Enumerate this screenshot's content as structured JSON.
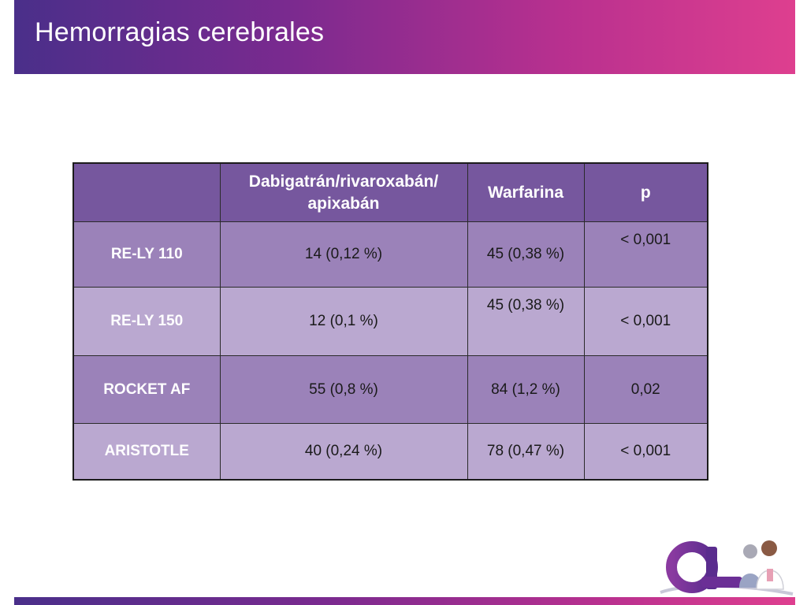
{
  "slide": {
    "title": "Hemorragias cerebrales"
  },
  "table": {
    "headers": [
      "",
      "Dabigatrán/rivaroxabán/ apixabán",
      "Warfarina",
      "p"
    ],
    "rows": [
      {
        "label": "RE-LY 110",
        "cells": [
          "14 (0,12 %)",
          "45 (0,38 %)",
          "< 0,001"
        ]
      },
      {
        "label": "RE-LY 150",
        "cells": [
          "12 (0,1 %)",
          "45 (0,38 %)",
          "< 0,001"
        ]
      },
      {
        "label": "ROCKET AF",
        "cells": [
          "55 (0,8 %)",
          "84 (1,2 %)",
          "0,02"
        ]
      },
      {
        "label": "ARISTOTLE",
        "cells": [
          "40 (0,24 %)",
          "78 (0,47 %)",
          "< 0,001"
        ]
      }
    ]
  },
  "colors": {
    "header_bg": "#76579e",
    "row_odd_bg": "#9b82b9",
    "row_even_bg": "#baa8d0",
    "title_gradient_start": "#4a2f8a",
    "title_gradient_end": "#de3f8f"
  },
  "logo": {
    "icon": "medical-brand-logo"
  }
}
